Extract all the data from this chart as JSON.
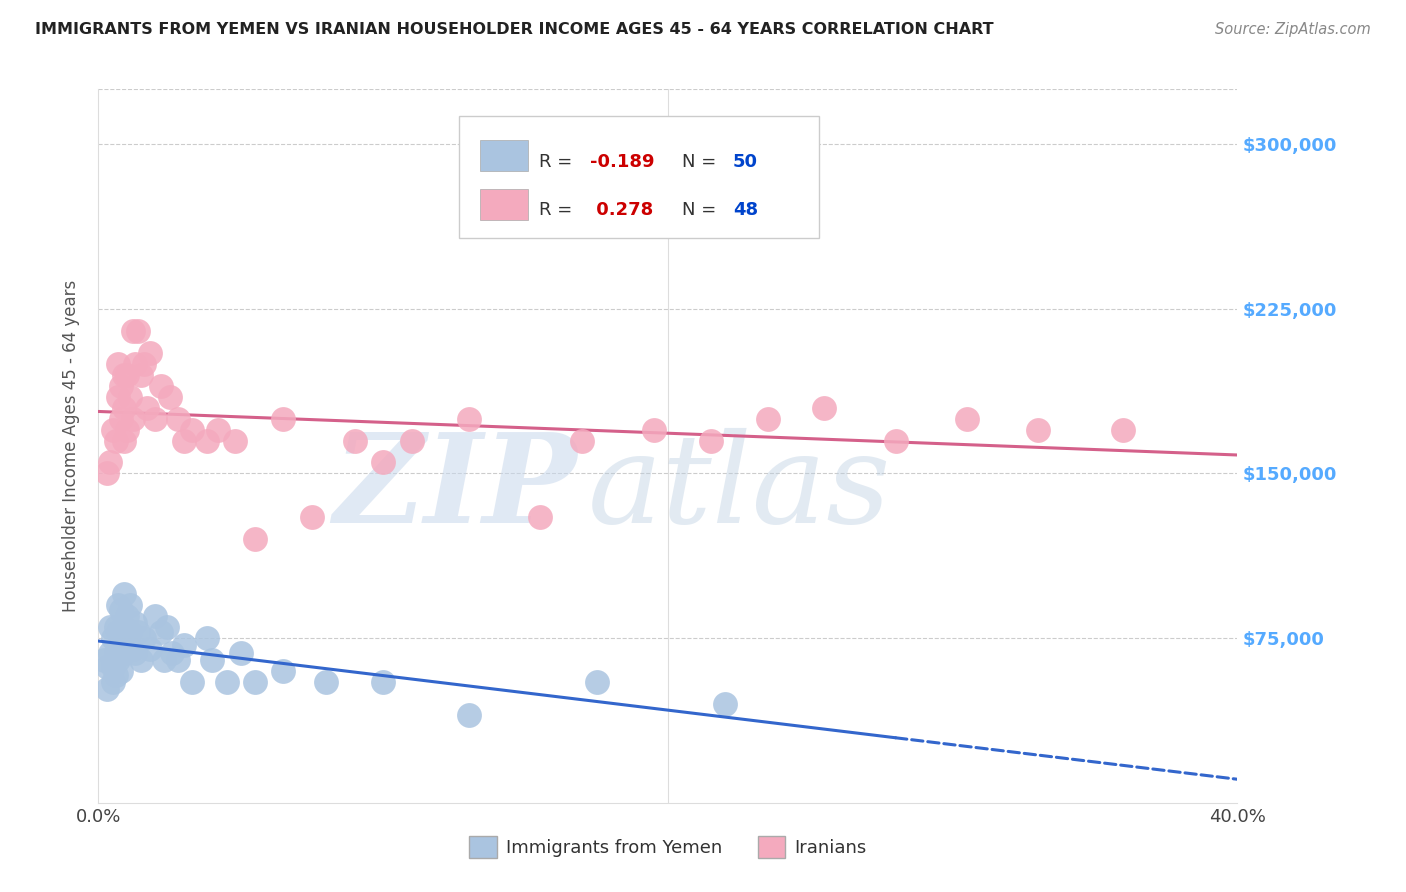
{
  "title": "IMMIGRANTS FROM YEMEN VS IRANIAN HOUSEHOLDER INCOME AGES 45 - 64 YEARS CORRELATION CHART",
  "source": "Source: ZipAtlas.com",
  "ylabel": "Householder Income Ages 45 - 64 years",
  "xlim": [
    0.0,
    0.4
  ],
  "ylim": [
    0,
    325000
  ],
  "background_color": "#ffffff",
  "grid_color": "#cccccc",
  "yemen_R": -0.189,
  "yemen_N": 50,
  "iran_R": 0.278,
  "iran_N": 48,
  "yemen_color": "#aac4e0",
  "iran_color": "#f4aabe",
  "yemen_line_color": "#3366cc",
  "iran_line_color": "#d4608a",
  "watermark_zip": "ZIP",
  "watermark_atlas": "atlas",
  "legend_R_color": "#cc0000",
  "legend_N_color": "#0044cc",
  "ytick_labels": [
    "$75,000",
    "$150,000",
    "$225,000",
    "$300,000"
  ],
  "ytick_values": [
    75000,
    150000,
    225000,
    300000
  ],
  "ytick_color": "#55aaff",
  "bottom_label_yemen": "Immigrants from Yemen",
  "bottom_label_iran": "Iranians",
  "yemen_x": [
    0.002,
    0.003,
    0.003,
    0.004,
    0.004,
    0.005,
    0.005,
    0.005,
    0.006,
    0.006,
    0.006,
    0.007,
    0.007,
    0.007,
    0.008,
    0.008,
    0.008,
    0.009,
    0.009,
    0.009,
    0.01,
    0.01,
    0.011,
    0.011,
    0.012,
    0.013,
    0.013,
    0.014,
    0.015,
    0.016,
    0.018,
    0.02,
    0.022,
    0.023,
    0.024,
    0.026,
    0.028,
    0.03,
    0.033,
    0.038,
    0.04,
    0.045,
    0.05,
    0.055,
    0.065,
    0.08,
    0.1,
    0.13,
    0.175,
    0.22
  ],
  "yemen_y": [
    65000,
    62000,
    52000,
    80000,
    68000,
    75000,
    62000,
    55000,
    80000,
    68000,
    58000,
    90000,
    78000,
    65000,
    88000,
    75000,
    60000,
    95000,
    80000,
    68000,
    85000,
    72000,
    90000,
    78000,
    70000,
    82000,
    68000,
    78000,
    65000,
    75000,
    70000,
    85000,
    78000,
    65000,
    80000,
    68000,
    65000,
    72000,
    55000,
    75000,
    65000,
    55000,
    68000,
    55000,
    60000,
    55000,
    55000,
    40000,
    55000,
    45000
  ],
  "iran_x": [
    0.003,
    0.004,
    0.005,
    0.006,
    0.007,
    0.007,
    0.008,
    0.008,
    0.009,
    0.009,
    0.009,
    0.01,
    0.01,
    0.011,
    0.012,
    0.012,
    0.013,
    0.014,
    0.015,
    0.016,
    0.017,
    0.018,
    0.02,
    0.022,
    0.025,
    0.028,
    0.03,
    0.033,
    0.038,
    0.042,
    0.048,
    0.055,
    0.065,
    0.075,
    0.09,
    0.1,
    0.11,
    0.13,
    0.155,
    0.17,
    0.195,
    0.215,
    0.235,
    0.255,
    0.28,
    0.305,
    0.33,
    0.36
  ],
  "iran_y": [
    150000,
    155000,
    170000,
    165000,
    200000,
    185000,
    190000,
    175000,
    195000,
    180000,
    165000,
    195000,
    170000,
    185000,
    175000,
    215000,
    200000,
    215000,
    195000,
    200000,
    180000,
    205000,
    175000,
    190000,
    185000,
    175000,
    165000,
    170000,
    165000,
    170000,
    165000,
    120000,
    175000,
    130000,
    165000,
    155000,
    165000,
    175000,
    130000,
    165000,
    170000,
    165000,
    175000,
    180000,
    165000,
    175000,
    170000,
    170000
  ]
}
